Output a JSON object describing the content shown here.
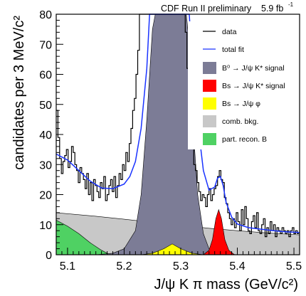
{
  "header": {
    "experiment": "CDF Run II preliminary",
    "lumi_value": "5.9 fb",
    "lumi_exp": "-1"
  },
  "chart_data": {
    "type": "line",
    "title": "",
    "xlabel": "J/ψ K π mass (GeV/c²)",
    "ylabel": "candidates per 3 MeV/c²",
    "xlim": [
      5.08,
      5.51
    ],
    "ylim": [
      0,
      80
    ],
    "x_ticks": [
      "5.1",
      "5.2",
      "5.3",
      "5.4",
      "5.5"
    ],
    "y_ticks": [
      "0",
      "10",
      "20",
      "30",
      "40",
      "50",
      "60",
      "70",
      "80"
    ],
    "grid": false,
    "legend_position": "top-right",
    "legend": [
      {
        "label": "data",
        "kind": "line",
        "color": "#000000"
      },
      {
        "label": "total fit",
        "kind": "line",
        "color": "#1a33ff"
      },
      {
        "label": "B⁰ → J/ψ K* signal",
        "kind": "fill",
        "color": "#7c7c96"
      },
      {
        "label": "Bs → J/ψ K* signal",
        "kind": "fill",
        "color": "#ff0000"
      },
      {
        "label": "Bs → J/ψ φ",
        "kind": "fill",
        "color": "#ffff00"
      },
      {
        "label": "comb. bkg.",
        "kind": "fill",
        "color": "#c8c8c8"
      },
      {
        "label": "part. recon. B",
        "kind": "fill",
        "color": "#4fd163"
      }
    ],
    "series": [
      {
        "name": "data",
        "type": "histogram",
        "bin_width": 0.003,
        "x_start": 5.08,
        "values": [
          48,
          39,
          32,
          27,
          31,
          33,
          35,
          29,
          31,
          36,
          34,
          30,
          28,
          24,
          29,
          27,
          25,
          22,
          27,
          20,
          24,
          18,
          25,
          23,
          21,
          19,
          24,
          22,
          26,
          18,
          20,
          23,
          25,
          21,
          26,
          19,
          23,
          27,
          25,
          30,
          28,
          34,
          31,
          37,
          42,
          48,
          52,
          60,
          68,
          80,
          80,
          80,
          80,
          80,
          80,
          80,
          80,
          80,
          80,
          80,
          80,
          80,
          80,
          80,
          80,
          80,
          80,
          80,
          80,
          80,
          80,
          80,
          80,
          80,
          80,
          80,
          74,
          62,
          55,
          45,
          40,
          30,
          28,
          24,
          21,
          18,
          20,
          19,
          16,
          20,
          22,
          18,
          20,
          22,
          23,
          26,
          28,
          25,
          24,
          19,
          17,
          14,
          12,
          10,
          12,
          9,
          14,
          11,
          8,
          15,
          10,
          16,
          12,
          8,
          7,
          11,
          13,
          9,
          14,
          8,
          7,
          10,
          12,
          6,
          9,
          7,
          11,
          8,
          10,
          6,
          9,
          8,
          7,
          9,
          8,
          7,
          8,
          6,
          8,
          9,
          7,
          8,
          7
        ]
      },
      {
        "name": "total fit",
        "type": "curve",
        "points": [
          [
            5.08,
            33.5
          ],
          [
            5.1,
            31.5
          ],
          [
            5.12,
            28
          ],
          [
            5.14,
            24.5
          ],
          [
            5.16,
            22.2
          ],
          [
            5.18,
            22
          ],
          [
            5.2,
            23.5
          ],
          [
            5.21,
            26
          ],
          [
            5.22,
            31
          ],
          [
            5.23,
            42
          ],
          [
            5.24,
            62
          ],
          [
            5.245,
            80
          ],
          [
            5.315,
            80
          ],
          [
            5.32,
            66
          ],
          [
            5.33,
            44
          ],
          [
            5.34,
            28
          ],
          [
            5.35,
            21.5
          ],
          [
            5.36,
            22.5
          ],
          [
            5.365,
            25.5
          ],
          [
            5.37,
            26
          ],
          [
            5.375,
            23
          ],
          [
            5.38,
            17.5
          ],
          [
            5.39,
            12.5
          ],
          [
            5.4,
            10.2
          ],
          [
            5.42,
            9
          ],
          [
            5.45,
            8.3
          ],
          [
            5.48,
            7.7
          ],
          [
            5.51,
            7.4
          ]
        ]
      },
      {
        "name": "comb. bkg.",
        "type": "area",
        "points": [
          [
            5.08,
            14
          ],
          [
            5.15,
            12.8
          ],
          [
            5.2,
            11.8
          ],
          [
            5.25,
            10.8
          ],
          [
            5.3,
            9.8
          ],
          [
            5.35,
            8.8
          ],
          [
            5.4,
            8.0
          ],
          [
            5.45,
            7.3
          ],
          [
            5.51,
            6.6
          ]
        ]
      },
      {
        "name": "part. recon. B",
        "type": "area",
        "points": [
          [
            5.08,
            11.5
          ],
          [
            5.1,
            9.5
          ],
          [
            5.12,
            7
          ],
          [
            5.14,
            4
          ],
          [
            5.16,
            1.5
          ],
          [
            5.175,
            0
          ]
        ]
      },
      {
        "name": "B⁰ → J/ψ K* signal",
        "type": "area",
        "points": [
          [
            5.15,
            0
          ],
          [
            5.18,
            0.5
          ],
          [
            5.2,
            2
          ],
          [
            5.22,
            8
          ],
          [
            5.23,
            20
          ],
          [
            5.24,
            45
          ],
          [
            5.25,
            75
          ],
          [
            5.255,
            80
          ],
          [
            5.31,
            80
          ],
          [
            5.315,
            70
          ],
          [
            5.32,
            48
          ],
          [
            5.33,
            20
          ],
          [
            5.34,
            7
          ],
          [
            5.35,
            2
          ],
          [
            5.37,
            0.5
          ],
          [
            5.4,
            0
          ]
        ]
      },
      {
        "name": "Bs → J/ψ φ",
        "type": "area",
        "points": [
          [
            5.23,
            0
          ],
          [
            5.25,
            0.5
          ],
          [
            5.27,
            2
          ],
          [
            5.285,
            3.6
          ],
          [
            5.3,
            2
          ],
          [
            5.32,
            0.5
          ],
          [
            5.34,
            0
          ]
        ]
      },
      {
        "name": "Bs → J/ψ K* signal",
        "type": "area",
        "points": [
          [
            5.34,
            0
          ],
          [
            5.35,
            1.5
          ],
          [
            5.356,
            5
          ],
          [
            5.362,
            12
          ],
          [
            5.367,
            15
          ],
          [
            5.372,
            12
          ],
          [
            5.378,
            5
          ],
          [
            5.385,
            1.5
          ],
          [
            5.395,
            0
          ]
        ]
      }
    ]
  }
}
